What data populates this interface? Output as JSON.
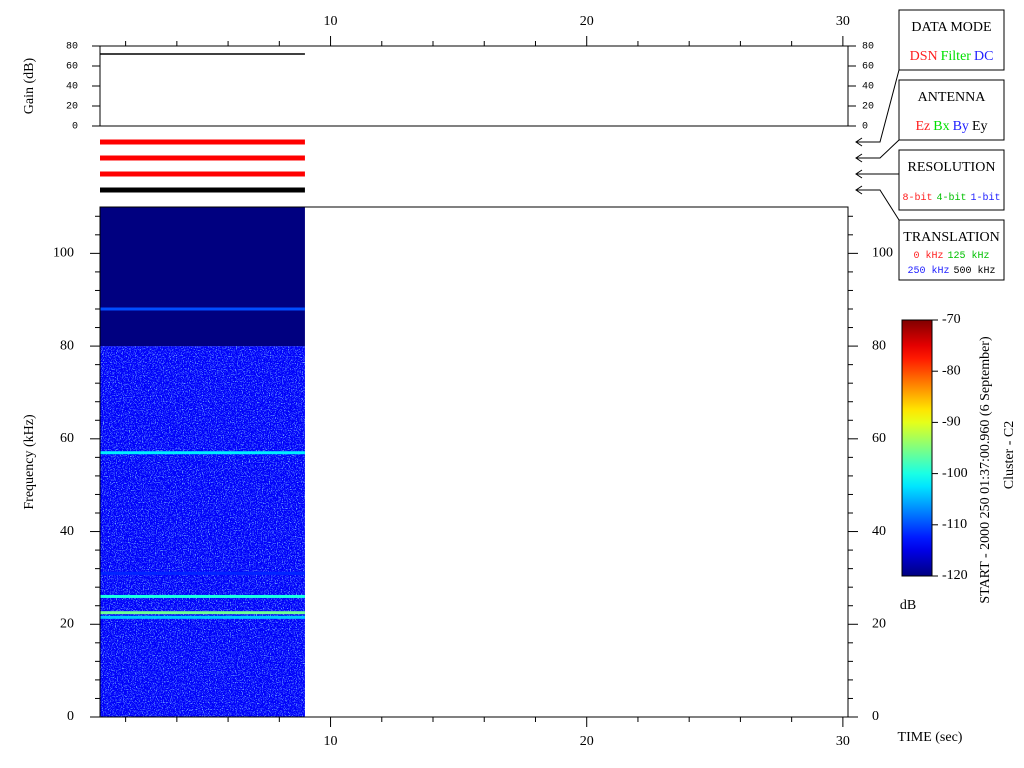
{
  "chart_data": [
    {
      "type": "line",
      "ylabel": "Gain (dB)",
      "xlim": [
        1,
        30.2
      ],
      "ylim": [
        0,
        80
      ],
      "yticks": [
        0,
        20,
        40,
        60,
        80
      ],
      "series": [
        {
          "color": "#000000",
          "x": [
            1,
            9
          ],
          "values": [
            72,
            72
          ]
        }
      ]
    },
    {
      "type": "status",
      "xlim": [
        1,
        30.2
      ],
      "series": [
        {
          "color": "#ff0000",
          "x": [
            1,
            9
          ]
        },
        {
          "color": "#ff0000",
          "x": [
            1,
            9
          ]
        },
        {
          "color": "#ff0000",
          "x": [
            1,
            9
          ]
        },
        {
          "color": "#000000",
          "x": [
            1,
            9
          ]
        }
      ]
    },
    {
      "type": "spectrogram",
      "xlabel": "TIME (sec)",
      "ylabel": "Frequency (kHz)",
      "xlim": [
        1,
        30.2
      ],
      "xticks": [
        10,
        20,
        30
      ],
      "xminor": [
        2,
        4,
        6,
        8,
        12,
        14,
        16,
        18,
        22,
        24,
        26,
        28
      ],
      "ylim": [
        0,
        110
      ],
      "yticks": [
        0,
        20,
        40,
        60,
        80,
        100
      ],
      "yminor": [
        4,
        8,
        12,
        16,
        24,
        28,
        32,
        36,
        44,
        48,
        52,
        56,
        64,
        68,
        72,
        76,
        84,
        88,
        92,
        96,
        104,
        108
      ],
      "tlim": [
        1,
        9
      ],
      "bands": [
        {
          "flim": [
            0,
            80
          ],
          "level": -114
        },
        {
          "flim": [
            80,
            110
          ],
          "level": -120
        }
      ],
      "lines": [
        {
          "freq": 88,
          "level": -110
        },
        {
          "freq": 57,
          "level": -102
        },
        {
          "freq": 31,
          "level": -112
        },
        {
          "freq": 26,
          "level": -100
        },
        {
          "freq": 22.5,
          "level": -96
        },
        {
          "freq": 21.5,
          "level": -104
        }
      ],
      "colorbar": {
        "label": "dB",
        "lim": [
          -120,
          -70
        ],
        "ticks": [
          -70,
          -80,
          -90,
          -100,
          -110,
          -120
        ]
      }
    }
  ],
  "legend_boxes": [
    {
      "title": "DATA MODE",
      "items": [
        {
          "text": "DSN",
          "color": "#ff2020"
        },
        {
          "text": "Filter",
          "color": "#00e000"
        },
        {
          "text": "DC",
          "color": "#2020ff"
        }
      ]
    },
    {
      "title": "ANTENNA",
      "items": [
        {
          "text": "Ez",
          "color": "#ff2020"
        },
        {
          "text": "Bx",
          "color": "#00e000"
        },
        {
          "text": "By",
          "color": "#2020ff"
        },
        {
          "text": "Ey",
          "color": "#000000"
        }
      ]
    },
    {
      "title": "RESOLUTION",
      "items": [
        {
          "text": "8-bit",
          "color": "#ff2020"
        },
        {
          "text": "4-bit",
          "color": "#00c000"
        },
        {
          "text": "1-bit",
          "color": "#2020ff"
        }
      ]
    },
    {
      "title": "TRANSLATION",
      "items": [
        {
          "text": "0 kHz",
          "color": "#ff2020"
        },
        {
          "text": "125 kHz",
          "color": "#00c000"
        },
        {
          "text": "250 kHz",
          "color": "#2020ff"
        },
        {
          "text": "500 kHz",
          "color": "#000000"
        }
      ]
    }
  ],
  "annotations": [
    "START - 2000 250 01:37:00.960 (6 September)",
    "Cluster - C2"
  ]
}
